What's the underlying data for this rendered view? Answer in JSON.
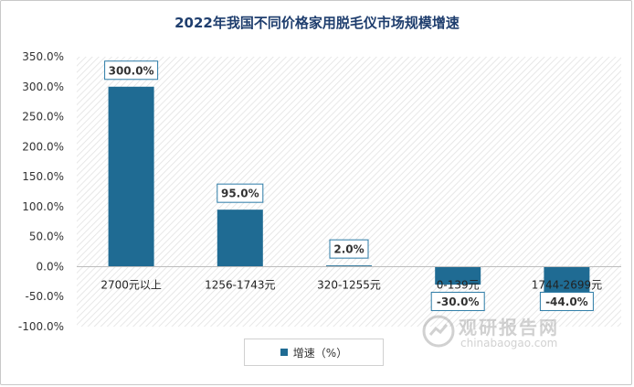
{
  "chart_data": {
    "type": "bar",
    "title": "2022年我国不同价格家用脱毛仪市场规模增速",
    "categories": [
      "2700元以上",
      "1256-1743元",
      "320-1255元",
      "0-139元",
      "1744-2699元"
    ],
    "series": [
      {
        "name": "增速（%）",
        "values": [
          300.0,
          95.0,
          2.0,
          -30.0,
          -44.0
        ]
      }
    ],
    "data_labels": [
      "300.0%",
      "95.0%",
      "2.0%",
      "-30.0%",
      "-44.0%"
    ],
    "y_ticks": [
      "350.0%",
      "300.0%",
      "250.0%",
      "200.0%",
      "150.0%",
      "100.0%",
      "50.0%",
      "0.0%",
      "-50.0%",
      "-100.0%"
    ],
    "ylim": [
      -100,
      350
    ],
    "xlabel": "",
    "ylabel": "",
    "grid": false,
    "plot_background": "diagonal-hatch",
    "legend_position": "bottom",
    "bar_color": "#1f6b93",
    "label_border_color": "#2a7aa6"
  },
  "watermark": {
    "name_cn": "观研报告网",
    "url": "chinabaogao.com"
  }
}
